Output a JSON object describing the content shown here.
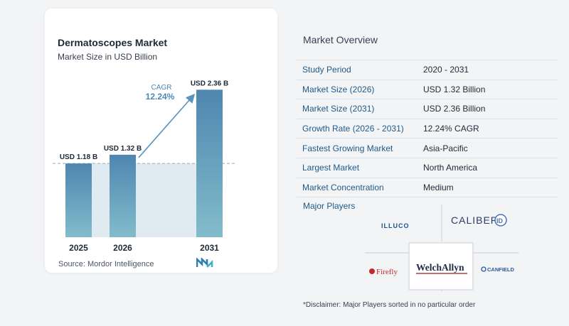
{
  "chart_card": {
    "title": "Dermatoscopes Market",
    "subtitle": "Market Size in USD Billion",
    "source": "Source:  Mordor Intelligence"
  },
  "chart_data": {
    "type": "bar",
    "title": "Dermatoscopes Market",
    "subtitle": "Market Size in USD Billion",
    "categories": [
      "2025",
      "2026",
      "2031"
    ],
    "values": [
      1.18,
      1.32,
      2.36
    ],
    "data_labels": [
      "USD 1.18 B",
      "USD 1.32 B",
      "USD 2.36 B"
    ],
    "cagr_label": "CAGR",
    "cagr_value": "12.24%",
    "ylim": [
      0,
      2.5
    ],
    "grid": false,
    "colors": {
      "bar_dark": "#4f86b0",
      "bar_light": "#7fb4c8",
      "band": "#dfeaf1",
      "arrow": "#5b93bf",
      "cagr_text": "#4a88b8"
    }
  },
  "overview": {
    "title": "Market Overview",
    "rows": [
      {
        "label": "Study Period",
        "value": "2020 - 2031"
      },
      {
        "label": "Market Size (2026)",
        "value": "USD 1.32 Billion"
      },
      {
        "label": "Market Size (2031)",
        "value": "USD 2.36 Billion"
      },
      {
        "label": "Growth Rate (2026 - 2031)",
        "value": "12.24% CAGR"
      },
      {
        "label": "Fastest Growing Market",
        "value": "Asia-Pacific"
      },
      {
        "label": "Largest Market",
        "value": "North America"
      },
      {
        "label": "Market Concentration",
        "value": "Medium"
      }
    ]
  },
  "players": {
    "title": "Major Players",
    "logos": {
      "illuco": "ILLUCO",
      "caliber": "CALIBER",
      "caliber_badge": "ID",
      "firefly": "Firefly",
      "welchallyn": "WelchAllyn",
      "canfield": "CANFIELD"
    }
  },
  "disclaimer": "*Disclaimer: Major Players sorted in no particular order"
}
